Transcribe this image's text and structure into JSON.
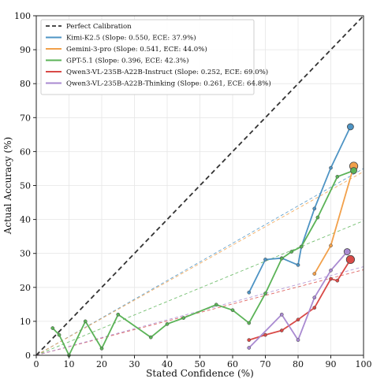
{
  "chart_data": {
    "type": "line",
    "title": "",
    "xlabel": "Stated Confidence (%)",
    "ylabel": "Actual Accuracy (%)",
    "xlim": [
      0,
      100
    ],
    "ylim": [
      0,
      100
    ],
    "xticks": [
      0,
      10,
      20,
      30,
      40,
      50,
      60,
      70,
      80,
      90,
      100
    ],
    "yticks": [
      0,
      10,
      20,
      30,
      40,
      50,
      60,
      70,
      80,
      90,
      100
    ],
    "grid": true,
    "legend_position": "top-left",
    "reference": {
      "name": "Perfect Calibration",
      "color": "#333333",
      "x": [
        0,
        100
      ],
      "y": [
        0,
        100
      ]
    },
    "series": [
      {
        "name": "Kimi-K2.5 (Slope: 0.550, ECE: 37.9%)",
        "color": "#4e94c4",
        "slope": 0.55,
        "x": [
          65,
          70,
          75,
          80,
          81,
          85,
          90,
          96
        ],
        "y": [
          18.5,
          28.2,
          28.6,
          26.6,
          32.0,
          43.2,
          55.2,
          67.3
        ],
        "final_x": 96,
        "final_y": 67.3
      },
      {
        "name": "Gemini-3-pro (Slope: 0.541, ECE: 44.0%)",
        "color": "#f2a04a",
        "slope": 0.541,
        "x": [
          85,
          90,
          97
        ],
        "y": [
          24.0,
          32.3,
          55.7
        ],
        "final_x": 97,
        "final_y": 55.7
      },
      {
        "name": "GPT-5.1 (Slope: 0.396, ECE: 42.3%)",
        "color": "#5bb357",
        "slope": 0.396,
        "x": [
          5,
          7,
          10,
          15,
          20,
          25,
          35,
          40,
          45,
          55,
          60,
          65,
          70,
          75,
          78,
          81,
          86,
          92,
          97
        ],
        "y": [
          8.0,
          6.0,
          0.0,
          10.0,
          2.0,
          12.0,
          5.3,
          9.2,
          11.0,
          14.9,
          13.3,
          9.5,
          18.2,
          28.5,
          30.5,
          32.0,
          40.6,
          52.6,
          54.4
        ],
        "final_x": 97,
        "final_y": 54.4
      },
      {
        "name": "Qwen3-VL-235B-A22B-Instruct (Slope: 0.252, ECE: 69.0%)",
        "color": "#d94a47",
        "slope": 0.252,
        "x": [
          65,
          70,
          75,
          80,
          85,
          90,
          92,
          96
        ],
        "y": [
          4.5,
          6.0,
          7.3,
          10.5,
          14.0,
          22.5,
          22.0,
          28.2
        ],
        "final_x": 96,
        "final_y": 28.2
      },
      {
        "name": "Qwen3-VL-235B-A22B-Thinking (Slope: 0.261, ECE: 64.8%)",
        "color": "#a98ad1",
        "slope": 0.261,
        "x": [
          65,
          75,
          80,
          85,
          90,
          95
        ],
        "y": [
          2.2,
          12.0,
          4.5,
          17.0,
          25.0,
          30.5
        ],
        "final_x": 95,
        "final_y": 30.5
      }
    ]
  }
}
